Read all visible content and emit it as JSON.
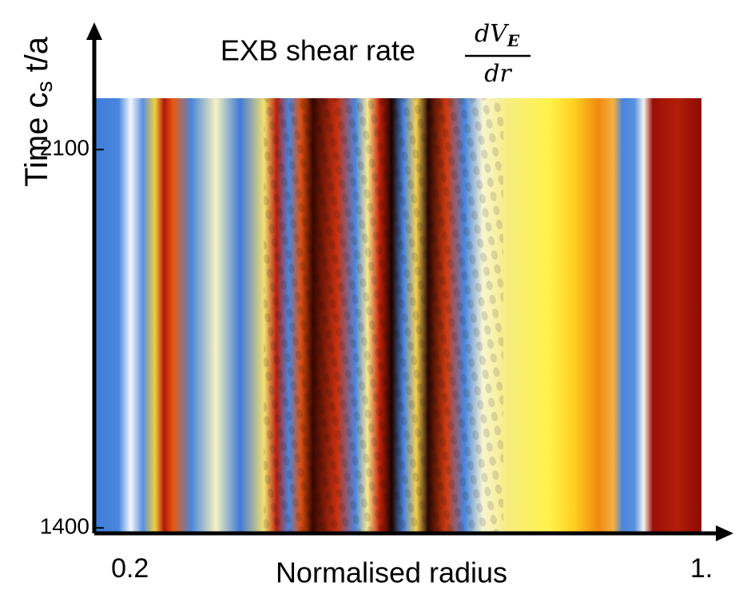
{
  "chart_data": {
    "type": "heatmap",
    "title": "EXB shear rate",
    "title_fraction": {
      "numerator": "dV",
      "numerator_sub": "E",
      "denominator": "dr"
    },
    "ylabel": {
      "text": "Time c",
      "sub": "s",
      "rest": " t/a"
    },
    "xlabel": "Normalised radius",
    "xlim": [
      0.15,
      1.0
    ],
    "xticks": [
      0.2,
      {
        "value": 1,
        "label": "1."
      }
    ],
    "ylim": [
      1390,
      2195
    ],
    "yticks": [
      1400,
      2100
    ]
  }
}
